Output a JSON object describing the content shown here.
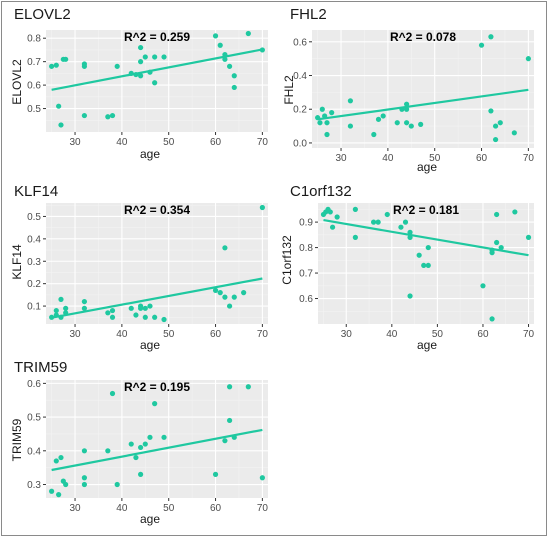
{
  "colors": {
    "point": "#1fc8a0",
    "line": "#1fc8a0",
    "panel_bg": "#ebebeb",
    "grid_major": "#ffffff",
    "grid_minor": "#f3f3f3",
    "tick_text": "#4d4d4d",
    "annotation": "#000000"
  },
  "chart_data": [
    {
      "type": "scatter",
      "title": "ELOVL2",
      "xlabel": "age",
      "ylabel": "ELOVL2",
      "annotation": "R^2 = 0.259",
      "xlim": [
        23.8,
        71.2
      ],
      "ylim": [
        0.4,
        0.835
      ],
      "xticks": [
        30,
        40,
        50,
        60,
        70
      ],
      "yticks": [
        0.5,
        0.6,
        0.7,
        0.8
      ],
      "grid": true,
      "points": [
        [
          25,
          0.68
        ],
        [
          26,
          0.685
        ],
        [
          26.5,
          0.51
        ],
        [
          27,
          0.43
        ],
        [
          27.5,
          0.71
        ],
        [
          28,
          0.71
        ],
        [
          32,
          0.69
        ],
        [
          32,
          0.68
        ],
        [
          32,
          0.47
        ],
        [
          37,
          0.465
        ],
        [
          38,
          0.47
        ],
        [
          39,
          0.68
        ],
        [
          42,
          0.65
        ],
        [
          43,
          0.645
        ],
        [
          44,
          0.76
        ],
        [
          44,
          0.7
        ],
        [
          44,
          0.64
        ],
        [
          45,
          0.72
        ],
        [
          46,
          0.655
        ],
        [
          47,
          0.72
        ],
        [
          47,
          0.61
        ],
        [
          49,
          0.72
        ],
        [
          60,
          0.81
        ],
        [
          61,
          0.77
        ],
        [
          62,
          0.73
        ],
        [
          62,
          0.71
        ],
        [
          63,
          0.68
        ],
        [
          64,
          0.64
        ],
        [
          64,
          0.59
        ],
        [
          67,
          0.82
        ],
        [
          70,
          0.75
        ]
      ],
      "fit": {
        "x": [
          25,
          70
        ],
        "y": [
          0.58,
          0.752
        ]
      }
    },
    {
      "type": "scatter",
      "title": "FHL2",
      "xlabel": "age",
      "ylabel": "FHL2",
      "annotation": "R^2 = 0.078",
      "xlim": [
        23.8,
        71.2
      ],
      "ylim": [
        -0.03,
        0.67
      ],
      "xticks": [
        30,
        40,
        50,
        60,
        70
      ],
      "yticks": [
        0.0,
        0.2,
        0.4,
        0.6
      ],
      "grid": true,
      "points": [
        [
          25,
          0.15
        ],
        [
          25.5,
          0.12
        ],
        [
          26,
          0.2
        ],
        [
          26.5,
          0.16
        ],
        [
          27,
          0.12
        ],
        [
          27,
          0.05
        ],
        [
          28,
          0.18
        ],
        [
          32,
          0.25
        ],
        [
          32,
          0.1
        ],
        [
          37,
          0.05
        ],
        [
          38,
          0.14
        ],
        [
          39,
          0.16
        ],
        [
          42,
          0.12
        ],
        [
          43,
          0.2
        ],
        [
          44,
          0.23
        ],
        [
          44,
          0.2
        ],
        [
          44,
          0.12
        ],
        [
          45,
          0.1
        ],
        [
          47,
          0.11
        ],
        [
          60,
          0.58
        ],
        [
          62,
          0.63
        ],
        [
          62,
          0.19
        ],
        [
          63,
          0.1
        ],
        [
          63,
          0.02
        ],
        [
          64,
          0.12
        ],
        [
          67,
          0.06
        ],
        [
          70,
          0.5
        ]
      ],
      "fit": {
        "x": [
          25,
          70
        ],
        "y": [
          0.14,
          0.315
        ]
      }
    },
    {
      "type": "scatter",
      "title": "KLF14",
      "xlabel": "age",
      "ylabel": "KLF14",
      "annotation": "R^2 = 0.354",
      "xlim": [
        23.8,
        71.2
      ],
      "ylim": [
        0.02,
        0.56
      ],
      "xticks": [
        30,
        40,
        50,
        60,
        70
      ],
      "yticks": [
        0.1,
        0.2,
        0.3,
        0.4,
        0.5
      ],
      "grid": true,
      "points": [
        [
          25,
          0.05
        ],
        [
          26,
          0.06
        ],
        [
          26,
          0.08
        ],
        [
          27,
          0.05
        ],
        [
          27,
          0.13
        ],
        [
          28,
          0.09
        ],
        [
          28,
          0.07
        ],
        [
          32,
          0.12
        ],
        [
          32,
          0.09
        ],
        [
          37,
          0.07
        ],
        [
          38,
          0.08
        ],
        [
          38,
          0.05
        ],
        [
          42,
          0.09
        ],
        [
          43,
          0.06
        ],
        [
          44,
          0.1
        ],
        [
          44,
          0.09
        ],
        [
          45,
          0.05
        ],
        [
          45,
          0.09
        ],
        [
          46,
          0.1
        ],
        [
          47,
          0.05
        ],
        [
          49,
          0.04
        ],
        [
          60,
          0.17
        ],
        [
          61,
          0.16
        ],
        [
          62,
          0.36
        ],
        [
          62,
          0.14
        ],
        [
          63,
          0.1
        ],
        [
          64,
          0.14
        ],
        [
          66,
          0.16
        ],
        [
          70,
          0.54
        ]
      ],
      "fit": {
        "x": [
          25,
          70
        ],
        "y": [
          0.048,
          0.223
        ]
      }
    },
    {
      "type": "scatter",
      "title": "C1orf132",
      "xlabel": "age",
      "ylabel": "C1orf132",
      "annotation": "R^2 = 0.181",
      "xlim": [
        23.8,
        71.2
      ],
      "ylim": [
        0.5,
        0.975
      ],
      "xticks": [
        30,
        40,
        50,
        60,
        70
      ],
      "yticks": [
        0.6,
        0.7,
        0.8,
        0.9
      ],
      "grid": true,
      "points": [
        [
          25,
          0.93
        ],
        [
          25.5,
          0.94
        ],
        [
          26,
          0.95
        ],
        [
          26.5,
          0.94
        ],
        [
          27,
          0.88
        ],
        [
          28,
          0.92
        ],
        [
          32,
          0.95
        ],
        [
          32,
          0.84
        ],
        [
          36,
          0.9
        ],
        [
          37,
          0.9
        ],
        [
          39,
          0.93
        ],
        [
          42,
          0.88
        ],
        [
          43,
          0.9
        ],
        [
          44,
          0.86
        ],
        [
          44,
          0.84
        ],
        [
          44,
          0.61
        ],
        [
          46,
          0.77
        ],
        [
          47,
          0.73
        ],
        [
          48,
          0.8
        ],
        [
          48,
          0.73
        ],
        [
          60,
          0.65
        ],
        [
          62,
          0.79
        ],
        [
          62,
          0.78
        ],
        [
          62,
          0.52
        ],
        [
          63,
          0.93
        ],
        [
          63,
          0.82
        ],
        [
          64,
          0.8
        ],
        [
          67,
          0.94
        ],
        [
          70,
          0.84
        ]
      ],
      "fit": {
        "x": [
          25,
          70
        ],
        "y": [
          0.908,
          0.77
        ]
      }
    },
    {
      "type": "scatter",
      "title": "TRIM59",
      "xlabel": "age",
      "ylabel": "TRIM59",
      "annotation": "R^2 = 0.195",
      "xlim": [
        23.8,
        71.2
      ],
      "ylim": [
        0.26,
        0.61
      ],
      "xticks": [
        30,
        40,
        50,
        60,
        70
      ],
      "yticks": [
        0.3,
        0.4,
        0.5,
        0.6
      ],
      "grid": true,
      "points": [
        [
          25,
          0.28
        ],
        [
          26,
          0.37
        ],
        [
          26.5,
          0.27
        ],
        [
          27,
          0.38
        ],
        [
          27.5,
          0.31
        ],
        [
          28,
          0.3
        ],
        [
          32,
          0.4
        ],
        [
          32,
          0.32
        ],
        [
          32,
          0.3
        ],
        [
          37,
          0.4
        ],
        [
          38,
          0.57
        ],
        [
          39,
          0.3
        ],
        [
          42,
          0.42
        ],
        [
          43,
          0.38
        ],
        [
          44,
          0.33
        ],
        [
          44,
          0.41
        ],
        [
          45,
          0.42
        ],
        [
          46,
          0.44
        ],
        [
          47,
          0.54
        ],
        [
          49,
          0.44
        ],
        [
          60,
          0.33
        ],
        [
          62,
          0.43
        ],
        [
          63,
          0.49
        ],
        [
          63,
          0.59
        ],
        [
          64,
          0.44
        ],
        [
          67,
          0.59
        ],
        [
          70,
          0.32
        ]
      ],
      "fit": {
        "x": [
          25,
          70
        ],
        "y": [
          0.343,
          0.462
        ]
      }
    }
  ]
}
